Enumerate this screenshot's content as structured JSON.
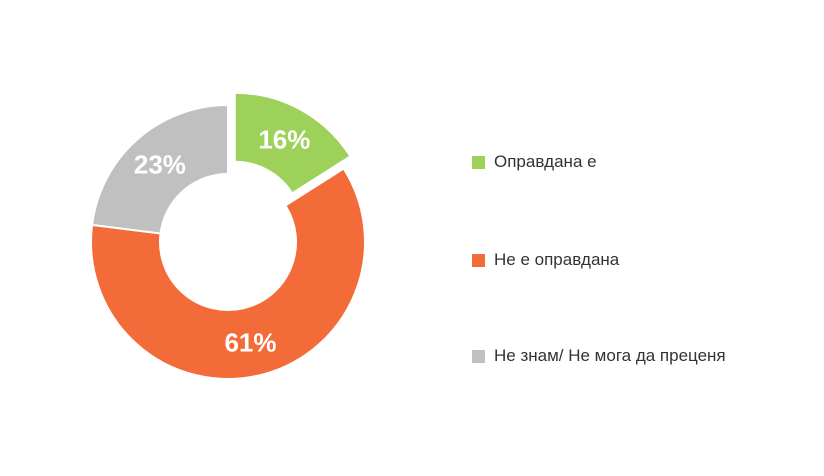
{
  "chart_data": {
    "type": "pie",
    "title": "",
    "categories": [
      "Оправдана е",
      "Не е оправдана",
      "Не знам/ Не мога да преценя"
    ],
    "values": [
      16,
      61,
      23
    ],
    "labels": [
      "16%",
      "61%",
      "23%"
    ],
    "unit": "%",
    "donut": true,
    "exploded": [
      "Оправдана е"
    ],
    "colors": [
      "#9dd15a",
      "#f46b3a",
      "#c0c0c0"
    ],
    "legend_position": "right"
  }
}
